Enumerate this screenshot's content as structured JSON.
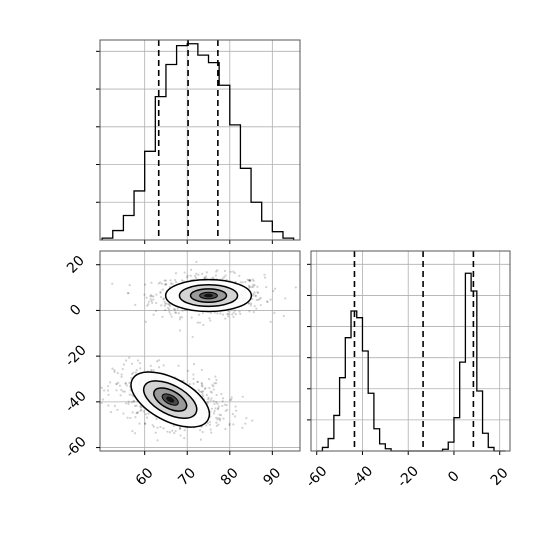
{
  "chart_data": [
    {
      "panel": "histogram-x",
      "type": "bar",
      "x_bin_edges": [
        50,
        52.5,
        55,
        57.5,
        60,
        62.5,
        65,
        67.5,
        70,
        72.5,
        75,
        77.5,
        80,
        82.5,
        85,
        87.5,
        90,
        92.5,
        95
      ],
      "counts": [
        5,
        25,
        65,
        130,
        235,
        380,
        465,
        515,
        520,
        490,
        470,
        410,
        305,
        190,
        100,
        50,
        22,
        5
      ],
      "vertical_dashed_lines": [
        63.3,
        70.2,
        77.2
      ],
      "xlim": [
        49.5,
        96.5
      ],
      "ylim": [
        0,
        530
      ],
      "grid": true,
      "x_tick_labels_shown": false,
      "y_tick_labels_shown": false
    },
    {
      "panel": "joint-density",
      "type": "scatter",
      "x_ticks": [
        60,
        70,
        80,
        90
      ],
      "y_ticks": [
        20,
        0,
        -20,
        -40,
        -60
      ],
      "xlim": [
        49.5,
        96.5
      ],
      "ylim": [
        -61.5,
        26
      ],
      "grid": true,
      "clusters": [
        {
          "center_x": 75,
          "center_y": 6.5,
          "spread_x": 6.5,
          "spread_y": 4.5,
          "points": 700
        },
        {
          "center_x": 66,
          "center_y": -39,
          "spread_x": 6.5,
          "spread_y": 6.0,
          "points": 700
        }
      ]
    },
    {
      "panel": "histogram-y",
      "type": "bar",
      "x_ticks": [
        -60,
        -40,
        -20,
        0,
        20
      ],
      "x_bin_edges": [
        -60,
        -57.5,
        -55,
        -52.5,
        -50,
        -47.5,
        -45,
        -42.5,
        -40,
        -37.5,
        -35,
        -32.5,
        -30,
        -27.5,
        -25,
        -22.5,
        -20,
        -17.5,
        -15,
        -12.5,
        -10,
        -7.5,
        -5,
        -2.5,
        0,
        2.5,
        5,
        7.5,
        10,
        12.5,
        15,
        17.5,
        20,
        22.5
      ],
      "counts": [
        0,
        8,
        28,
        80,
        165,
        255,
        315,
        300,
        225,
        130,
        50,
        16,
        5,
        0,
        0,
        0,
        0,
        0,
        0,
        0,
        0,
        0,
        4,
        20,
        75,
        200,
        400,
        360,
        135,
        40,
        8,
        0,
        0
      ],
      "vertical_dashed_lines": [
        -43.5,
        -13.5,
        8.5
      ],
      "xlim": [
        -62.5,
        24.5
      ],
      "ylim": [
        0,
        450
      ],
      "grid": true,
      "y_tick_labels_shown": false
    }
  ]
}
